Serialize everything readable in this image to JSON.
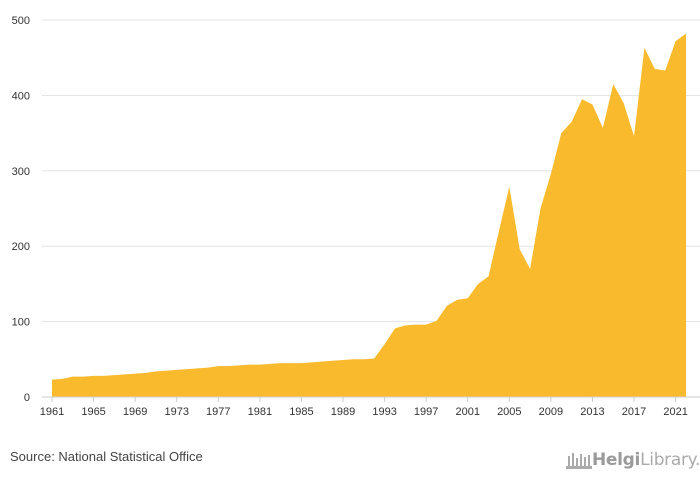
{
  "chart_data": {
    "type": "area",
    "title": "",
    "xlabel": "",
    "ylabel": "",
    "ylim": [
      0,
      500
    ],
    "yticks": [
      0,
      100,
      200,
      300,
      400,
      500
    ],
    "xticks": [
      "1961",
      "1965",
      "1969",
      "1973",
      "1977",
      "1981",
      "1985",
      "1989",
      "1993",
      "1997",
      "2001",
      "2005",
      "2009",
      "2013",
      "2017",
      "2021"
    ],
    "grid": true,
    "fill_color": "#f9bb2d",
    "series": [
      {
        "x": [
          1961,
          1962,
          1963,
          1964,
          1965,
          1966,
          1967,
          1968,
          1969,
          1970,
          1971,
          1972,
          1973,
          1974,
          1975,
          1976,
          1977,
          1978,
          1979,
          1980,
          1981,
          1982,
          1983,
          1984,
          1985,
          1986,
          1987,
          1988,
          1989,
          1990,
          1991,
          1992,
          1993,
          1994,
          1995,
          1996,
          1997,
          1998,
          1999,
          2000,
          2001,
          2002,
          2003,
          2004,
          2005,
          2006,
          2007,
          2008,
          2009,
          2010,
          2011,
          2012,
          2013,
          2014,
          2015,
          2016,
          2017,
          2018,
          2019,
          2020,
          2021,
          2022
        ],
        "values": [
          23,
          24,
          27,
          27,
          28,
          28,
          29,
          30,
          31,
          32,
          34,
          35,
          36,
          37,
          38,
          39,
          41,
          41,
          42,
          43,
          43,
          44,
          45,
          45,
          45,
          46,
          47,
          48,
          49,
          50,
          50,
          51,
          70,
          91,
          95,
          96,
          96,
          101,
          121,
          129,
          131,
          150,
          160,
          220,
          279,
          196,
          170,
          250,
          296,
          350,
          365,
          395,
          388,
          357,
          415,
          390,
          346,
          463,
          435,
          433,
          472,
          482
        ]
      }
    ]
  },
  "footer": {
    "source": "Source: National Statistical Office",
    "brand_name_bold": "Helgi",
    "brand_name_rest": "Library."
  },
  "colors": {
    "area": "#f9bb2d",
    "grid": "#e3e3e3",
    "axis_text": "#333333"
  }
}
